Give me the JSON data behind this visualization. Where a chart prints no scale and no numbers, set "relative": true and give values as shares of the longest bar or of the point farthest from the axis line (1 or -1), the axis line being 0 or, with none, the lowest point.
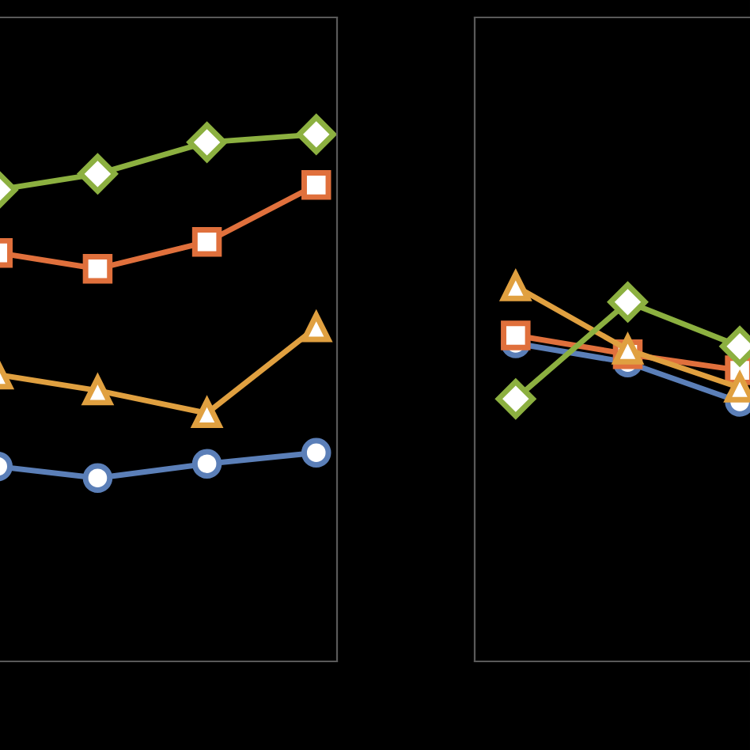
{
  "chart_data": [
    {
      "type": "line",
      "relative": true,
      "categories": [
        null,
        null,
        null,
        null
      ],
      "line_style": "solid",
      "series": [
        {
          "color": "#5b7fb8",
          "marker": "circle",
          "values": [
            0.372,
            0.348,
            0.375,
            0.396
          ]
        },
        {
          "color": "#e0703c",
          "marker": "square",
          "values": [
            0.778,
            0.745,
            0.796,
            0.904
          ]
        },
        {
          "color": "#e0a040",
          "marker": "triangle",
          "values": [
            0.547,
            0.514,
            0.471,
            0.634
          ]
        },
        {
          "color": "#8cb040",
          "marker": "diamond",
          "values": [
            0.892,
            0.925,
            0.985,
            1
          ]
        }
      ]
    },
    {
      "type": "line",
      "relative": true,
      "categories": [
        null,
        null,
        null
      ],
      "line_style": "solid",
      "series": [
        {
          "color": "#5b7fb8",
          "marker": "circle",
          "values": [
            0.848,
            0.797,
            0.692
          ]
        },
        {
          "color": "#e0703c",
          "marker": "square",
          "values": [
            0.869,
            0.819,
            0.776
          ]
        },
        {
          "color": "#e0a040",
          "marker": "triangle",
          "values": [
            1,
            0.831,
            0.73
          ]
        },
        {
          "color": "#8cb040",
          "marker": "diamond",
          "values": [
            0.7,
            0.958,
            0.84
          ]
        }
      ]
    }
  ]
}
